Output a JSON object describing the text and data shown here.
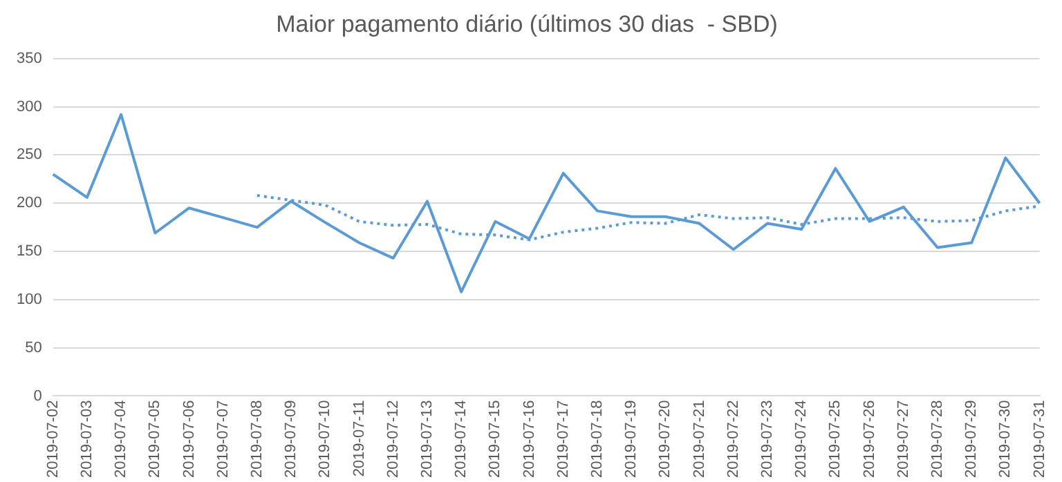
{
  "chart_data": {
    "type": "line",
    "title": "Maior pagamento diário (últimos 30 dias  - SBD)",
    "categories": [
      "2019-07-02",
      "2019-07-03",
      "2019-07-04",
      "2019-07-05",
      "2019-07-06",
      "2019-07-07",
      "2019-07-08",
      "2019-07-09",
      "2019-07-10",
      "2019-07-11",
      "2019-07-12",
      "2019-07-13",
      "2019-07-14",
      "2019-07-15",
      "2019-07-16",
      "2019-07-17",
      "2019-07-18",
      "2019-07-19",
      "2019-07-20",
      "2019-07-21",
      "2019-07-22",
      "2019-07-23",
      "2019-07-24",
      "2019-07-25",
      "2019-07-26",
      "2019-07-27",
      "2019-07-28",
      "2019-07-29",
      "2019-07-30",
      "2019-07-31"
    ],
    "series": [
      {
        "color": "#5b9bd5",
        "line_style": "solid",
        "values": [
          230,
          206,
          292,
          169,
          195,
          185,
          175,
          202,
          180,
          159,
          143,
          202,
          108,
          181,
          163,
          231,
          192,
          186,
          186,
          179,
          152,
          179,
          173,
          236,
          181,
          196,
          154,
          159,
          247,
          200
        ]
      },
      {
        "color": "#5b9bd5",
        "line_style": "dotted",
        "values": [
          null,
          null,
          null,
          null,
          null,
          null,
          208,
          203,
          198,
          181,
          177,
          178,
          168,
          167,
          162,
          170,
          174,
          180,
          179,
          188,
          184,
          185,
          178,
          184,
          184,
          185,
          181,
          182,
          192,
          197
        ]
      }
    ],
    "ylim": [
      0,
      350
    ],
    "yticks": [
      0,
      50,
      100,
      150,
      200,
      250,
      300,
      350
    ],
    "grid": "y",
    "legend": false,
    "marker": "none"
  }
}
